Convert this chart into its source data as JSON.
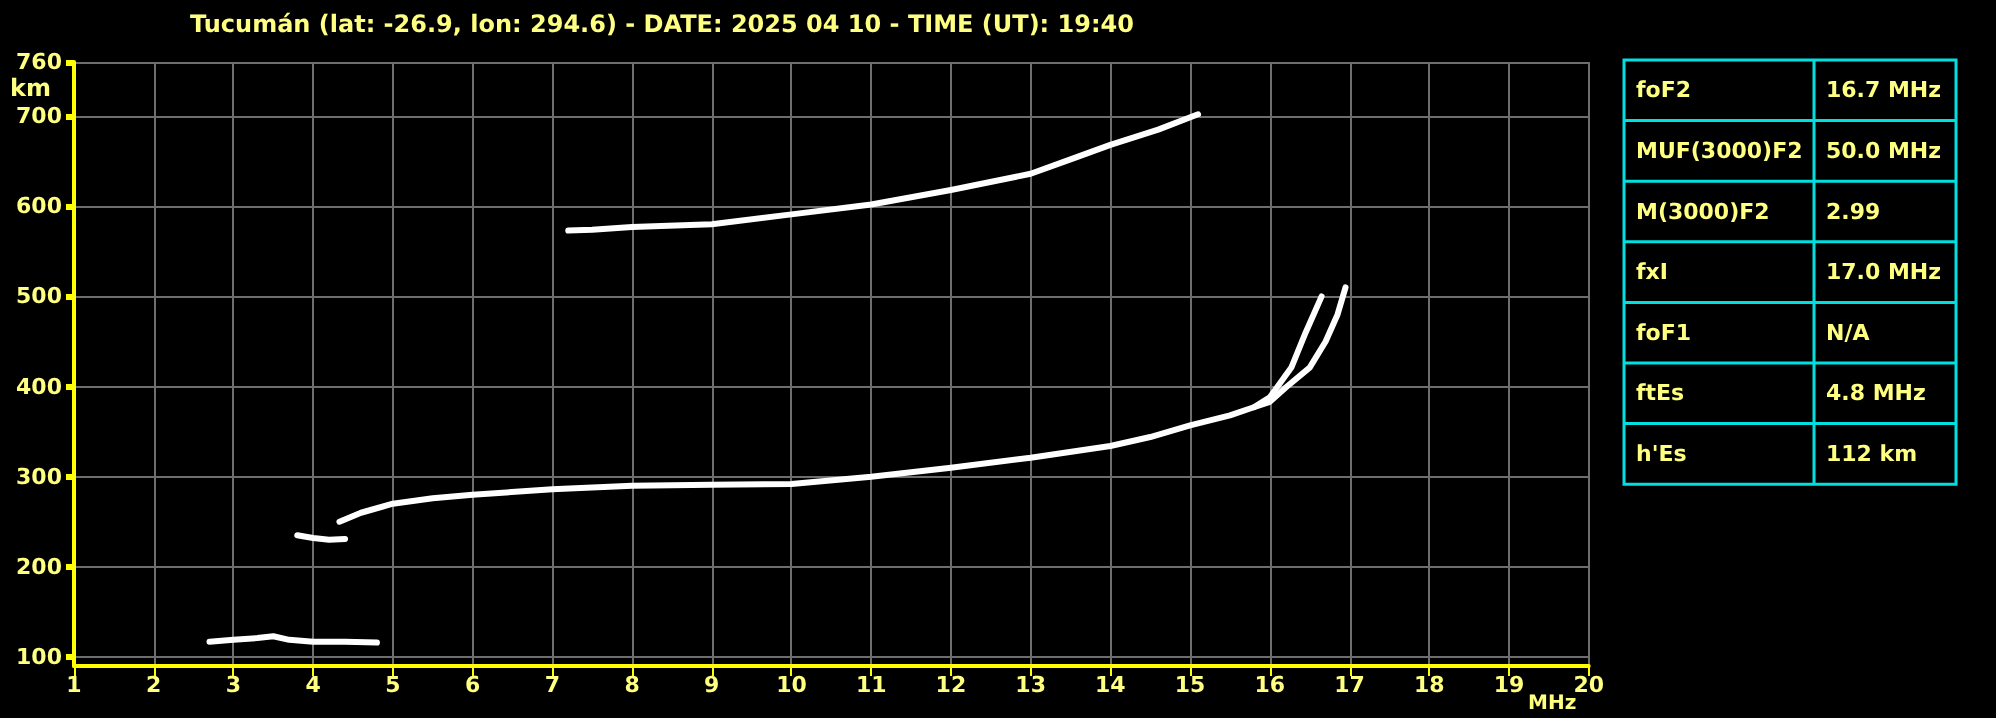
{
  "chart_data": [
    {
      "type": "line",
      "title": "Tucumán (lat: -26.9, lon: 294.6) - DATE: 2025 04 10 - TIME (UT): 19:40",
      "xlabel": "MHz",
      "ylabel": "km",
      "xlim": [
        1,
        20
      ],
      "ylim": [
        90,
        760
      ],
      "xticks": [
        1,
        2,
        3,
        4,
        5,
        6,
        7,
        8,
        9,
        10,
        11,
        12,
        13,
        14,
        15,
        16,
        17,
        18,
        19,
        20
      ],
      "yticks": [
        100,
        200,
        300,
        400,
        500,
        600,
        700,
        760
      ],
      "grid": true,
      "marker": "none",
      "line_style": "solid",
      "series": [
        {
          "color": "#ffffff",
          "x": [
            2.7,
            3.0,
            3.3,
            3.5,
            3.7,
            4.0,
            4.4,
            4.8
          ],
          "values": [
            117,
            119,
            121,
            123,
            119,
            117,
            117,
            116
          ]
        },
        {
          "color": "#ffffff",
          "x": [
            3.8,
            4.0,
            4.2,
            4.4
          ],
          "values": [
            235,
            232,
            230,
            231
          ]
        },
        {
          "color": "#ffffff",
          "x": [
            4.33,
            4.6,
            5.0,
            5.5,
            6.0,
            7.0,
            8.0,
            9.0,
            10.0,
            11.0,
            12.0,
            13.0,
            14.0,
            14.5,
            15.0,
            15.5,
            15.8,
            16.0,
            16.27,
            16.45,
            16.65
          ],
          "values": [
            250,
            260,
            270,
            276,
            280,
            286,
            290,
            291,
            292,
            300,
            310,
            321,
            334,
            344,
            357,
            368,
            377,
            388,
            421,
            460,
            500
          ]
        },
        {
          "color": "#ffffff",
          "x": [
            15.8,
            16.0,
            16.2,
            16.5,
            16.7,
            16.85,
            16.95
          ],
          "values": [
            377,
            383,
            399,
            421,
            450,
            480,
            510
          ]
        },
        {
          "color": "#ffffff",
          "x": [
            7.2,
            7.5,
            8.0,
            9.0,
            10.0,
            11.0,
            12.0,
            13.0,
            13.5,
            14.0,
            14.6,
            15.1
          ],
          "values": [
            573,
            574,
            577,
            580,
            591,
            602,
            618,
            636,
            652,
            668,
            685,
            702
          ]
        }
      ]
    },
    {
      "type": "other",
      "annotations": [
        "foF2",
        "16.7 MHz",
        "MUF(3000)F2",
        "50.0 MHz",
        "M(3000)F2",
        "2.99",
        "fxI",
        "17.0 MHz",
        "foF1",
        "N/A",
        "ftEs",
        "4.8 MHz",
        "h'Es",
        "112 km"
      ]
    }
  ]
}
